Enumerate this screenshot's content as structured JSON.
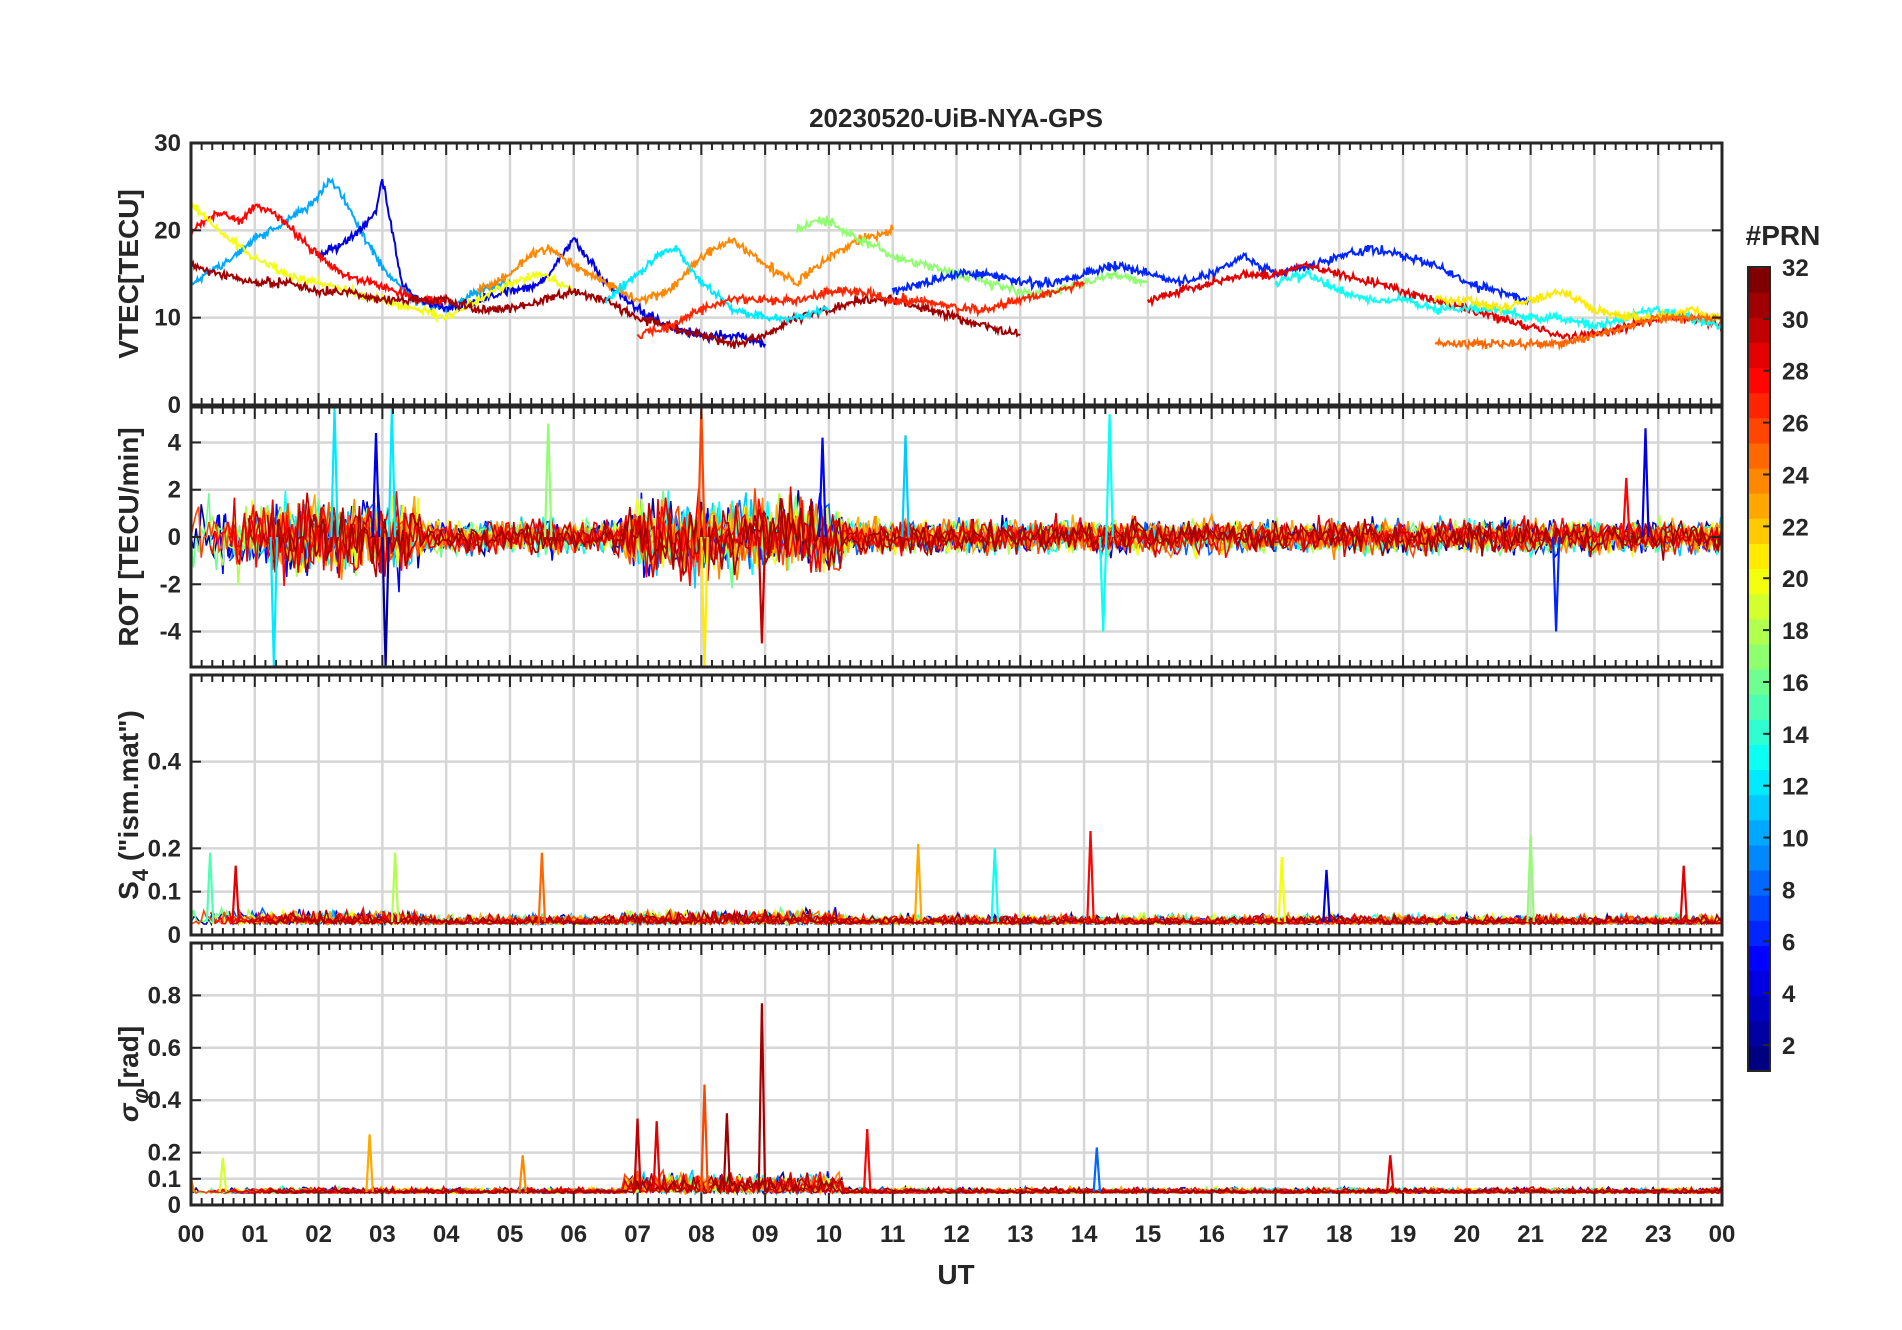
{
  "title": "20230520-UiB-NYA-GPS",
  "xlabel": "UT",
  "x_ticks": [
    "00",
    "01",
    "02",
    "03",
    "04",
    "05",
    "06",
    "07",
    "08",
    "09",
    "10",
    "11",
    "12",
    "13",
    "14",
    "15",
    "16",
    "17",
    "18",
    "19",
    "20",
    "21",
    "22",
    "23",
    "00"
  ],
  "colorbar": {
    "label": "#PRN",
    "ticks": [
      "2",
      "4",
      "6",
      "8",
      "10",
      "12",
      "14",
      "16",
      "18",
      "20",
      "22",
      "24",
      "26",
      "28",
      "30",
      "32"
    ],
    "range": [
      1,
      32
    ],
    "colormap": "jet"
  },
  "chart_data": [
    {
      "type": "line",
      "ylabel": "VTEC[TECU]",
      "xlim": [
        0,
        24
      ],
      "ylim": [
        0,
        30
      ],
      "yticks": [
        "0",
        "10",
        "20",
        "30"
      ],
      "grid": true,
      "series_summary": "multiple PRN traces (colored by PRN), values mostly 7–26 TECU",
      "series": [
        {
          "prn": 10,
          "x": [
            0.0,
            0.5,
            1.0,
            1.5,
            1.9,
            2.2,
            2.5,
            2.8,
            3.1,
            3.5,
            4.0,
            4.5,
            5.0
          ],
          "y": [
            14,
            16,
            19,
            21,
            23,
            26,
            22,
            18,
            15,
            12,
            11,
            13,
            14
          ]
        },
        {
          "prn": 4,
          "x": [
            2.0,
            2.5,
            2.9,
            3.0,
            3.1,
            3.3,
            3.6,
            4.0,
            4.5,
            5.0,
            5.5,
            6.0,
            6.5,
            7.0,
            7.5,
            8.0,
            8.5,
            9.0
          ],
          "y": [
            17,
            19,
            22,
            26,
            22,
            14,
            12,
            11,
            12,
            13,
            14,
            19,
            14,
            11,
            9,
            8,
            8,
            7
          ]
        },
        {
          "prn": 28,
          "x": [
            0.0,
            0.4,
            0.8,
            1.0,
            1.3,
            1.6,
            2.0,
            2.4,
            2.8,
            3.2,
            3.6,
            4.0
          ],
          "y": [
            20,
            22,
            21,
            23,
            22,
            20,
            17,
            15,
            14,
            13,
            12,
            12
          ]
        },
        {
          "prn": 20,
          "x": [
            0.0,
            0.3,
            0.6,
            1.0,
            1.5,
            2.0,
            2.5,
            3.0,
            3.5,
            4.0,
            4.5,
            5.0,
            5.5,
            6.0
          ],
          "y": [
            23,
            21,
            19,
            17,
            15,
            14,
            13,
            12,
            11,
            10,
            12,
            14,
            15,
            13
          ]
        },
        {
          "prn": 31,
          "x": [
            0.0,
            0.5,
            1.0,
            1.5,
            2.0,
            2.5,
            3.0,
            3.5,
            4.0,
            4.5,
            5.0,
            5.5,
            6.0,
            6.5,
            7.0,
            7.5,
            8.0,
            8.5,
            9.0,
            9.5,
            10.0,
            10.5,
            11.0,
            11.5,
            12.0,
            12.5,
            13.0
          ],
          "y": [
            16,
            15,
            14,
            14,
            13,
            13,
            12,
            12,
            12,
            11,
            11,
            12,
            13,
            12,
            10,
            9,
            8,
            7,
            8,
            10,
            11,
            12,
            12,
            11,
            10,
            9,
            8
          ]
        },
        {
          "prn": 24,
          "x": [
            4.5,
            5.0,
            5.3,
            5.6,
            6.0,
            6.5,
            7.0,
            7.5,
            8.0,
            8.5,
            9.0,
            9.5,
            10.0,
            10.5,
            11.0
          ],
          "y": [
            13,
            15,
            17,
            18,
            16,
            14,
            12,
            13,
            17,
            19,
            16,
            14,
            17,
            19,
            20
          ]
        },
        {
          "prn": 17,
          "x": [
            9.5,
            9.8,
            10.0,
            10.2,
            10.5,
            10.8,
            11.0,
            11.5,
            12.0,
            12.5,
            13.0,
            13.5,
            14.0,
            14.5,
            15.0
          ],
          "y": [
            20,
            21,
            21,
            20,
            19,
            18,
            17,
            16,
            15,
            14,
            13,
            13,
            14,
            15,
            14
          ]
        },
        {
          "prn": 12,
          "x": [
            6.5,
            7.0,
            7.3,
            7.6,
            8.0,
            8.5,
            9.0,
            9.5,
            10.0
          ],
          "y": [
            12,
            15,
            17,
            18,
            14,
            11,
            10,
            10,
            11
          ]
        },
        {
          "prn": 27,
          "x": [
            7.0,
            7.5,
            8.0,
            8.5,
            9.0,
            9.5,
            10.0,
            10.5,
            11.0,
            11.5,
            12.0,
            12.5,
            13.0,
            13.5,
            14.0
          ],
          "y": [
            8,
            9,
            11,
            12,
            12,
            12,
            13,
            13,
            12,
            12,
            11,
            11,
            12,
            13,
            14
          ]
        },
        {
          "prn": 6,
          "x": [
            11.0,
            11.5,
            12.0,
            12.5,
            13.0,
            13.5,
            14.0,
            14.5,
            15.0,
            15.5,
            16.0,
            16.5,
            17.0,
            17.5,
            18.0,
            18.5,
            19.0,
            19.5,
            20.0,
            20.5,
            21.0
          ],
          "y": [
            13,
            14,
            15,
            15,
            14,
            14,
            15,
            16,
            15,
            14,
            15,
            17,
            15,
            16,
            17,
            18,
            17,
            16,
            14,
            13,
            12
          ]
        },
        {
          "prn": 29,
          "x": [
            15.0,
            15.5,
            16.0,
            16.5,
            17.0,
            17.5,
            18.0,
            18.5,
            19.0,
            19.5,
            20.0,
            20.5,
            21.0,
            21.5,
            22.0,
            22.5,
            23.0,
            23.5,
            24.0
          ],
          "y": [
            12,
            13,
            14,
            15,
            15,
            16,
            15,
            14,
            13,
            12,
            11,
            10,
            9,
            8,
            8,
            9,
            10,
            10,
            9
          ]
        },
        {
          "prn": 13,
          "x": [
            17.0,
            17.5,
            18.0,
            18.5,
            19.0,
            19.5,
            20.0,
            20.5,
            21.0,
            21.5,
            22.0,
            22.5,
            23.0,
            23.5,
            24.0
          ],
          "y": [
            14,
            15,
            13,
            12,
            12,
            11,
            11,
            11,
            10,
            10,
            9,
            10,
            11,
            10,
            9
          ]
        },
        {
          "prn": 21,
          "x": [
            19.5,
            20.0,
            20.5,
            21.0,
            21.5,
            22.0,
            22.5,
            23.0,
            23.5,
            24.0
          ],
          "y": [
            12,
            12,
            11,
            12,
            13,
            11,
            10,
            10,
            11,
            10
          ]
        },
        {
          "prn": 25,
          "x": [
            19.5,
            20.0,
            20.5,
            21.0,
            21.5,
            22.0,
            22.5,
            23.0,
            23.5,
            24.0
          ],
          "y": [
            7,
            7,
            7,
            7,
            7,
            8,
            9,
            10,
            10,
            10
          ]
        }
      ]
    },
    {
      "type": "line",
      "ylabel": "ROT [TECU/min]",
      "xlim": [
        0,
        24
      ],
      "ylim": [
        -5.5,
        5.5
      ],
      "yticks": [
        "-4",
        "-2",
        "0",
        "2",
        "4"
      ],
      "grid": true,
      "series_summary": "noisy traces around 0 for all PRNs; spikes near 02:15, 03:00, 08:00, 09:00",
      "spikes": [
        {
          "x": 2.25,
          "y": 5.5,
          "prn": 12
        },
        {
          "x": 2.9,
          "y": 4.4,
          "prn": 4
        },
        {
          "x": 3.05,
          "y": -5.5,
          "prn": 2
        },
        {
          "x": 3.15,
          "y": 5.5,
          "prn": 12
        },
        {
          "x": 1.3,
          "y": -5.5,
          "prn": 12
        },
        {
          "x": 5.6,
          "y": 4.8,
          "prn": 17
        },
        {
          "x": 8.0,
          "y": 5.5,
          "prn": 26
        },
        {
          "x": 8.05,
          "y": -5.5,
          "prn": 21
        },
        {
          "x": 8.95,
          "y": -4.5,
          "prn": 30
        },
        {
          "x": 9.9,
          "y": 4.2,
          "prn": 5
        },
        {
          "x": 11.2,
          "y": 4.3,
          "prn": 11
        },
        {
          "x": 14.4,
          "y": 5.2,
          "prn": 13
        },
        {
          "x": 14.3,
          "y": -4.0,
          "prn": 13
        },
        {
          "x": 21.4,
          "y": -4.0,
          "prn": 6
        },
        {
          "x": 22.8,
          "y": 4.6,
          "prn": 4
        },
        {
          "x": 22.5,
          "y": 2.5,
          "prn": 28
        }
      ]
    },
    {
      "type": "line",
      "ylabel": "S4 (\"ism.mat\")",
      "ylabel_main": "S",
      "ylabel_sub": "4",
      "ylabel_rest": " (\"ism.mat\")",
      "xlim": [
        0,
        24
      ],
      "ylim": [
        0,
        0.6
      ],
      "yticks": [
        "0",
        "0.1",
        "0.2",
        "0.4"
      ],
      "grid": true,
      "series_summary": "baseline ~0.01–0.05 for all PRNs with bursts up to ~0.23",
      "spikes": [
        {
          "x": 0.3,
          "y": 0.19,
          "prn": 15
        },
        {
          "x": 0.7,
          "y": 0.16,
          "prn": 29
        },
        {
          "x": 3.2,
          "y": 0.19,
          "prn": 18
        },
        {
          "x": 5.5,
          "y": 0.19,
          "prn": 25
        },
        {
          "x": 11.4,
          "y": 0.21,
          "prn": 23
        },
        {
          "x": 12.6,
          "y": 0.2,
          "prn": 13
        },
        {
          "x": 14.1,
          "y": 0.24,
          "prn": 28
        },
        {
          "x": 17.1,
          "y": 0.18,
          "prn": 20
        },
        {
          "x": 17.8,
          "y": 0.15,
          "prn": 4
        },
        {
          "x": 21.0,
          "y": 0.23,
          "prn": 17
        },
        {
          "x": 23.4,
          "y": 0.16,
          "prn": 29
        }
      ]
    },
    {
      "type": "line",
      "ylabel": "σφ[rad]",
      "ylabel_main": "σ",
      "ylabel_sub": "φ",
      "ylabel_rest": "[rad]",
      "xlim": [
        0,
        24
      ],
      "ylim": [
        0,
        1.0
      ],
      "yticks": [
        "0",
        "0.1",
        "0.2",
        "0.4",
        "0.6",
        "0.8"
      ],
      "grid": true,
      "series_summary": "baseline ~0.03–0.08 for all PRNs, bursts between 07 and 10 UT, max ~0.77 at 08:55",
      "spikes": [
        {
          "x": 0.0,
          "y": 0.1,
          "prn": 24
        },
        {
          "x": 0.5,
          "y": 0.18,
          "prn": 19
        },
        {
          "x": 2.8,
          "y": 0.27,
          "prn": 23
        },
        {
          "x": 5.2,
          "y": 0.19,
          "prn": 24
        },
        {
          "x": 7.0,
          "y": 0.33,
          "prn": 30
        },
        {
          "x": 7.3,
          "y": 0.32,
          "prn": 29
        },
        {
          "x": 8.05,
          "y": 0.46,
          "prn": 26
        },
        {
          "x": 8.4,
          "y": 0.35,
          "prn": 31
        },
        {
          "x": 8.95,
          "y": 0.77,
          "prn": 31
        },
        {
          "x": 10.6,
          "y": 0.29,
          "prn": 28
        },
        {
          "x": 14.2,
          "y": 0.22,
          "prn": 8
        },
        {
          "x": 18.8,
          "y": 0.19,
          "prn": 29
        }
      ]
    }
  ]
}
